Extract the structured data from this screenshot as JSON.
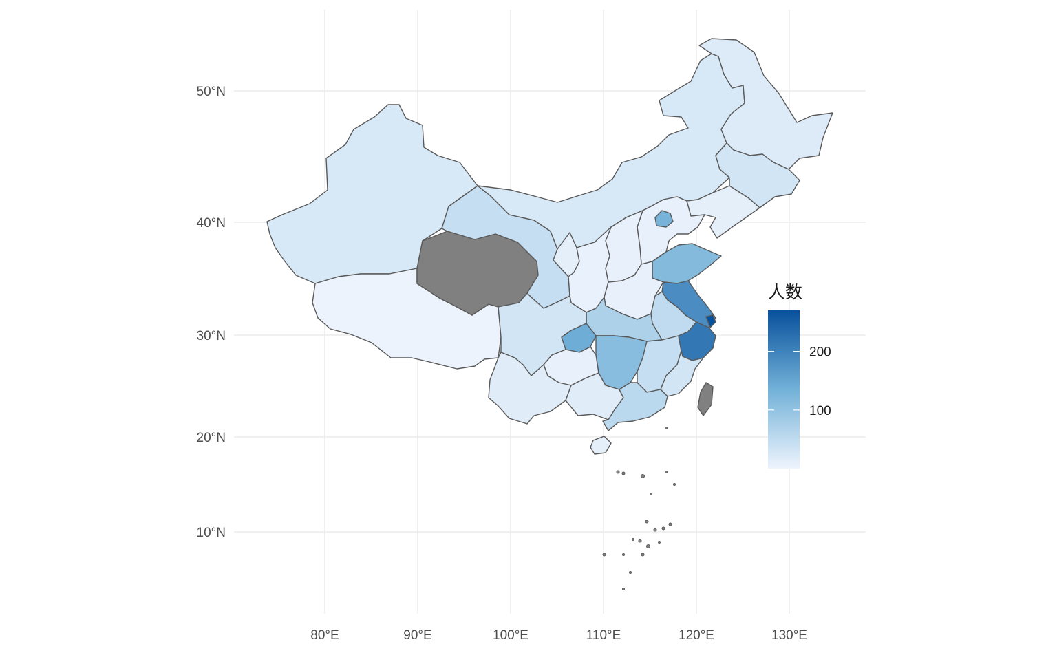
{
  "chart_data": {
    "type": "choropleth",
    "title": "",
    "xlabel": "",
    "ylabel": "",
    "x_ticks": [
      "80°E",
      "90°E",
      "100°E",
      "110°E",
      "120°E",
      "130°E"
    ],
    "y_ticks": [
      "50°N",
      "40°N",
      "30°N",
      "20°N",
      "10°N"
    ],
    "grid": true,
    "legend": {
      "title": "人数",
      "placement": "right",
      "labels": [
        "200",
        "100"
      ],
      "breaks": [
        200,
        100
      ],
      "range": [
        0,
        270
      ],
      "colors": {
        "low": "#eef4fd",
        "mid": "#72b1d8",
        "high": "#08519c"
      }
    },
    "na_color": "#808080",
    "regions": [
      {
        "name": "Xinjiang",
        "value": 25
      },
      {
        "name": "Tibet",
        "value": 2
      },
      {
        "name": "Qinghai",
        "value": null
      },
      {
        "name": "Gansu",
        "value": 45
      },
      {
        "name": "Inner Mongolia",
        "value": 25
      },
      {
        "name": "Heilongjiang",
        "value": 18
      },
      {
        "name": "Jilin",
        "value": 30
      },
      {
        "name": "Liaoning",
        "value": 10
      },
      {
        "name": "Beijing",
        "value": 130
      },
      {
        "name": "Hebei",
        "value": 8
      },
      {
        "name": "Shanxi",
        "value": 7
      },
      {
        "name": "Ningxia",
        "value": 10
      },
      {
        "name": "Shaanxi",
        "value": 5
      },
      {
        "name": "Shandong",
        "value": 115
      },
      {
        "name": "Henan",
        "value": 6
      },
      {
        "name": "Jiangsu",
        "value": 185
      },
      {
        "name": "Shanghai",
        "value": 270
      },
      {
        "name": "Anhui",
        "value": 50
      },
      {
        "name": "Hubei",
        "value": 70
      },
      {
        "name": "Chongqing",
        "value": 140
      },
      {
        "name": "Sichuan",
        "value": 30
      },
      {
        "name": "Hunan",
        "value": 110
      },
      {
        "name": "Jiangxi",
        "value": 45
      },
      {
        "name": "Zhejiang",
        "value": 215
      },
      {
        "name": "Fujian",
        "value": 30
      },
      {
        "name": "Guizhou",
        "value": 6
      },
      {
        "name": "Yunnan",
        "value": 15
      },
      {
        "name": "Guangxi",
        "value": 15
      },
      {
        "name": "Guangdong",
        "value": 55
      },
      {
        "name": "Hainan",
        "value": 10
      },
      {
        "name": "Taiwan",
        "value": null
      },
      {
        "name": "South China Sea Islands",
        "value": null
      }
    ]
  }
}
